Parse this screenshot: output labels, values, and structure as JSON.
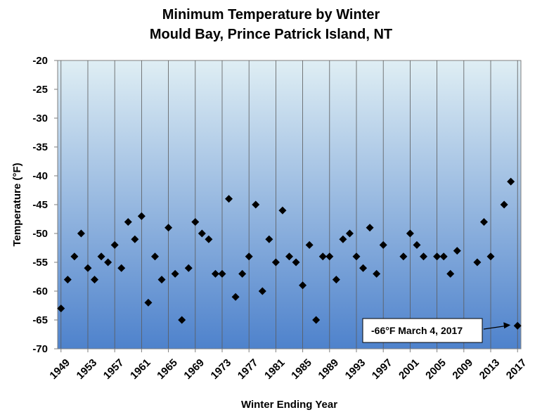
{
  "chart_data": {
    "type": "scatter",
    "title_lines": [
      "Minimum Temperature by Winter",
      "Mould Bay, Prince Patrick Island, NT"
    ],
    "xlabel": "Winter Ending Year",
    "ylabel": "Temperature (°F)",
    "xlim": [
      1949,
      2017
    ],
    "ylim": [
      -70,
      -20
    ],
    "xticks": [
      1949,
      1953,
      1957,
      1961,
      1965,
      1969,
      1973,
      1977,
      1981,
      1985,
      1989,
      1993,
      1997,
      2001,
      2005,
      2009,
      2013,
      2017
    ],
    "yticks": [
      -20,
      -25,
      -30,
      -35,
      -40,
      -45,
      -50,
      -55,
      -60,
      -65,
      -70
    ],
    "grid": "vertical",
    "background_gradient": [
      "#dfeef4",
      "#4e82cc"
    ],
    "marker_color": "#000000",
    "marker": "diamond",
    "series": [
      {
        "points": [
          [
            1949,
            -63
          ],
          [
            1950,
            -58
          ],
          [
            1951,
            -54
          ],
          [
            1952,
            -50
          ],
          [
            1953,
            -56
          ],
          [
            1954,
            -58
          ],
          [
            1955,
            -54
          ],
          [
            1956,
            -55
          ],
          [
            1957,
            -52
          ],
          [
            1958,
            -56
          ],
          [
            1959,
            -48
          ],
          [
            1960,
            -51
          ],
          [
            1961,
            -47
          ],
          [
            1962,
            -62
          ],
          [
            1963,
            -54
          ],
          [
            1964,
            -58
          ],
          [
            1965,
            -49
          ],
          [
            1966,
            -57
          ],
          [
            1967,
            -65
          ],
          [
            1968,
            -56
          ],
          [
            1969,
            -48
          ],
          [
            1970,
            -50
          ],
          [
            1971,
            -51
          ],
          [
            1972,
            -57
          ],
          [
            1973,
            -57
          ],
          [
            1974,
            -44
          ],
          [
            1975,
            -61
          ],
          [
            1976,
            -57
          ],
          [
            1977,
            -54
          ],
          [
            1978,
            -45
          ],
          [
            1979,
            -60
          ],
          [
            1980,
            -51
          ],
          [
            1981,
            -55
          ],
          [
            1982,
            -46
          ],
          [
            1983,
            -54
          ],
          [
            1984,
            -55
          ],
          [
            1985,
            -59
          ],
          [
            1986,
            -52
          ],
          [
            1987,
            -65
          ],
          [
            1988,
            -54
          ],
          [
            1989,
            -54
          ],
          [
            1990,
            -58
          ],
          [
            1991,
            -51
          ],
          [
            1992,
            -50
          ],
          [
            1993,
            -54
          ],
          [
            1994,
            -56
          ],
          [
            1995,
            -49
          ],
          [
            1996,
            -57
          ],
          [
            1997,
            -52
          ],
          [
            2000,
            -54
          ],
          [
            2001,
            -50
          ],
          [
            2002,
            -52
          ],
          [
            2003,
            -54
          ],
          [
            2005,
            -54
          ],
          [
            2006,
            -54
          ],
          [
            2007,
            -57
          ],
          [
            2008,
            -53
          ],
          [
            2011,
            -55
          ],
          [
            2012,
            -48
          ],
          [
            2013,
            -54
          ],
          [
            2015,
            -45
          ],
          [
            2016,
            -41
          ],
          [
            2017,
            -66
          ]
        ]
      }
    ],
    "annotation": {
      "text": "-66°F March 4, 2017",
      "points_to": [
        2017,
        -66
      ]
    }
  }
}
